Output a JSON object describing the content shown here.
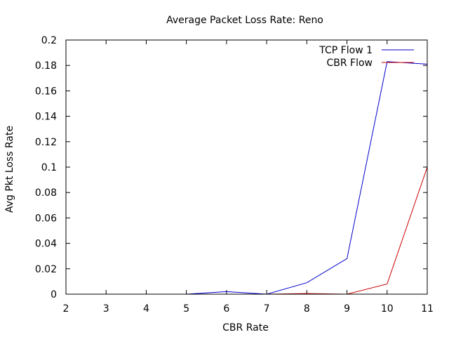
{
  "chart_data": {
    "type": "line",
    "title": "Average Packet Loss Rate: Reno",
    "xlabel": "CBR Rate",
    "ylabel": "Avg Pkt Loss Rate",
    "xlim": [
      2,
      11
    ],
    "ylim": [
      0,
      0.2
    ],
    "xticks": [
      2,
      3,
      4,
      5,
      6,
      7,
      8,
      9,
      10,
      11
    ],
    "yticks": [
      0,
      0.02,
      0.04,
      0.06,
      0.08,
      0.1,
      0.12,
      0.14,
      0.16,
      0.18,
      0.2
    ],
    "grid": false,
    "legend_position": "top-right",
    "series": [
      {
        "name": "TCP Flow 1",
        "color": "#0000cc",
        "x": [
          2,
          3,
          4,
          5,
          6,
          7,
          8,
          9,
          10,
          11
        ],
        "y": [
          0,
          0,
          0,
          0,
          0.002,
          0,
          0.009,
          0.028,
          0.183,
          0.181
        ]
      },
      {
        "name": "CBR Flow",
        "color": "#cc0000",
        "x": [
          2,
          3,
          4,
          5,
          6,
          7,
          8,
          9,
          10,
          11
        ],
        "y": [
          0,
          0,
          0,
          0,
          0,
          0,
          0.0005,
          0,
          0.008,
          0.1
        ]
      }
    ]
  }
}
